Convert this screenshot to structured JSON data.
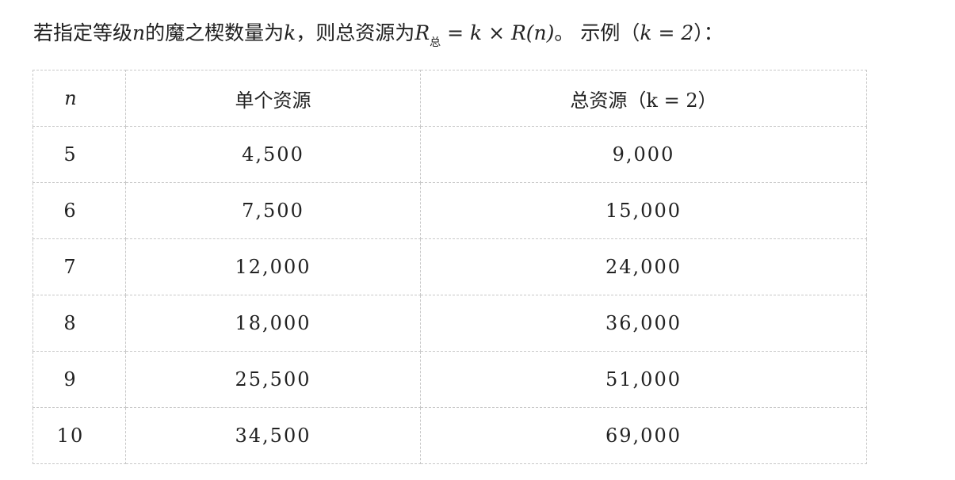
{
  "intro": {
    "text1": "若指定等级",
    "var_n": "n",
    "text2": "的魔之楔数量为",
    "var_k": "k",
    "text3": "，则总资源为",
    "formula_R": "R",
    "formula_sub": "总",
    "formula_rest": " = k × R(n)",
    "text4": "。 示例（",
    "example": "k = 2",
    "text5": "）："
  },
  "table": {
    "headers": [
      "n",
      "单个资源",
      "总资源（k = 2）"
    ],
    "rows": [
      [
        "5",
        "4,500",
        "9,000"
      ],
      [
        "6",
        "7,500",
        "15,000"
      ],
      [
        "7",
        "12,000",
        "24,000"
      ],
      [
        "8",
        "18,000",
        "36,000"
      ],
      [
        "9",
        "25,500",
        "51,000"
      ],
      [
        "10",
        "34,500",
        "69,000"
      ]
    ]
  }
}
